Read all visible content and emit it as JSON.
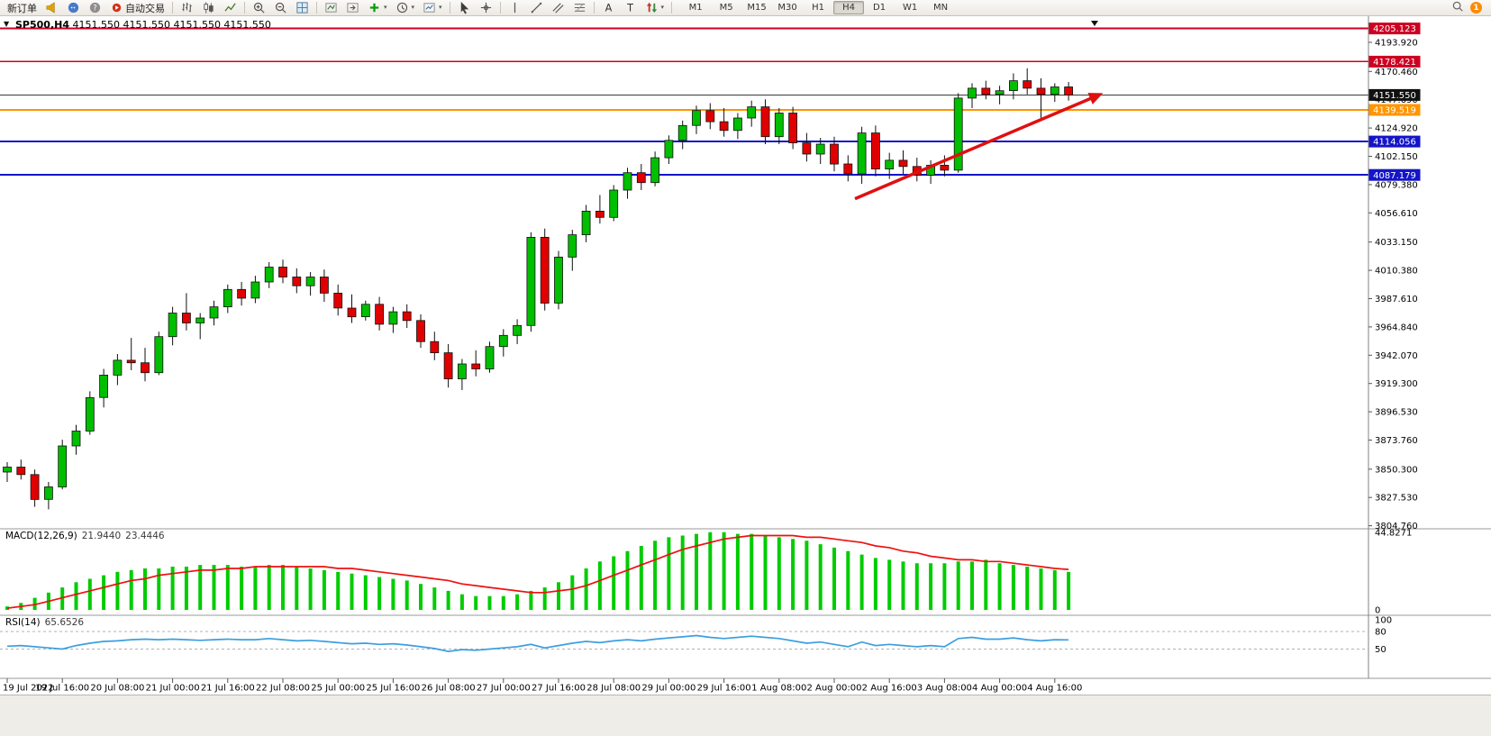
{
  "toolbar": {
    "new_order_label": "新订单",
    "autotrade_label": "自动交易",
    "timeframes": [
      "M1",
      "M5",
      "M15",
      "M30",
      "H1",
      "H4",
      "D1",
      "W1",
      "MN"
    ],
    "active_timeframe": "H4",
    "notification_count": "1"
  },
  "chart": {
    "title": "SP500,H4",
    "ohlc": "4151.550 4151.550 4151.550 4151.550",
    "current_price": "4151.550",
    "price_axis_labels": [
      "4193.920",
      "4170.460",
      "4147.690",
      "4124.920",
      "4102.150",
      "4079.380",
      "4056.610",
      "4033.150",
      "4010.380",
      "3987.610",
      "3964.840",
      "3942.070",
      "3919.300",
      "3896.530",
      "3873.760",
      "3850.300",
      "3827.530",
      "3804.760"
    ],
    "time_axis_labels": [
      "19 Jul 2022",
      "19 Jul 16:00",
      "20 Jul 08:00",
      "21 Jul 00:00",
      "21 Jul 16:00",
      "22 Jul 08:00",
      "25 Jul 00:00",
      "25 Jul 16:00",
      "26 Jul 08:00",
      "27 Jul 00:00",
      "27 Jul 16:00",
      "28 Jul 08:00",
      "29 Jul 00:00",
      "29 Jul 16:00",
      "1 Aug 08:00",
      "2 Aug 00:00",
      "2 Aug 16:00",
      "3 Aug 08:00",
      "4 Aug 00:00",
      "4 Aug 16:00"
    ],
    "level_badges": [
      {
        "label": "4205.123",
        "price": 4205.123,
        "color": "#cc0022"
      },
      {
        "label": "4178.421",
        "price": 4178.421,
        "color": "#cc0022"
      },
      {
        "label": "4151.550",
        "price": 4151.55,
        "color": "#101010"
      },
      {
        "label": "4139.519",
        "price": 4139.519,
        "color": "#ff9500"
      },
      {
        "label": "4114.056",
        "price": 4114.056,
        "color": "#1414c8"
      },
      {
        "label": "4087.179",
        "price": 4087.179,
        "color": "#1414c8"
      }
    ]
  },
  "chart_data": {
    "type": "candlestick",
    "symbol": "SP500",
    "timeframe": "H4",
    "bull_color": "#00be00",
    "bear_color": "#e00000",
    "candles_ohlc": [
      [
        3848,
        3856,
        3840,
        3852
      ],
      [
        3852,
        3858,
        3842,
        3846
      ],
      [
        3846,
        3850,
        3820,
        3826
      ],
      [
        3826,
        3840,
        3818,
        3836
      ],
      [
        3836,
        3874,
        3834,
        3869
      ],
      [
        3869,
        3886,
        3862,
        3881
      ],
      [
        3881,
        3913,
        3878,
        3908
      ],
      [
        3908,
        3931,
        3900,
        3926
      ],
      [
        3926,
        3943,
        3918,
        3938
      ],
      [
        3938,
        3956,
        3930,
        3936
      ],
      [
        3936,
        3948,
        3921,
        3928
      ],
      [
        3928,
        3961,
        3926,
        3957
      ],
      [
        3957,
        3981,
        3950,
        3976
      ],
      [
        3976,
        3992,
        3962,
        3968
      ],
      [
        3968,
        3976,
        3955,
        3972
      ],
      [
        3972,
        3986,
        3966,
        3981
      ],
      [
        3981,
        3999,
        3976,
        3995
      ],
      [
        3995,
        4001,
        3982,
        3988
      ],
      [
        3988,
        4006,
        3984,
        4001
      ],
      [
        4001,
        4017,
        3996,
        4013
      ],
      [
        4013,
        4019,
        4000,
        4005
      ],
      [
        4005,
        4012,
        3992,
        3998
      ],
      [
        3998,
        4009,
        3990,
        4005
      ],
      [
        4005,
        4011,
        3985,
        3992
      ],
      [
        3992,
        3999,
        3974,
        3980
      ],
      [
        3980,
        3991,
        3968,
        3973
      ],
      [
        3973,
        3986,
        3970,
        3983
      ],
      [
        3983,
        3989,
        3962,
        3967
      ],
      [
        3967,
        3981,
        3960,
        3977
      ],
      [
        3977,
        3983,
        3964,
        3970
      ],
      [
        3970,
        3975,
        3948,
        3953
      ],
      [
        3953,
        3961,
        3938,
        3944
      ],
      [
        3944,
        3951,
        3916,
        3923
      ],
      [
        3923,
        3939,
        3914,
        3935
      ],
      [
        3935,
        3946,
        3925,
        3931
      ],
      [
        3931,
        3953,
        3928,
        3949
      ],
      [
        3949,
        3963,
        3941,
        3958
      ],
      [
        3958,
        3971,
        3951,
        3966
      ],
      [
        3966,
        4041,
        3961,
        4037
      ],
      [
        4037,
        4044,
        3978,
        3984
      ],
      [
        3984,
        4026,
        3979,
        4021
      ],
      [
        4021,
        4043,
        4010,
        4039
      ],
      [
        4039,
        4063,
        4033,
        4058
      ],
      [
        4058,
        4071,
        4048,
        4053
      ],
      [
        4053,
        4079,
        4050,
        4075
      ],
      [
        4075,
        4093,
        4068,
        4089
      ],
      [
        4089,
        4096,
        4075,
        4081
      ],
      [
        4081,
        4106,
        4078,
        4101
      ],
      [
        4101,
        4119,
        4096,
        4115
      ],
      [
        4115,
        4131,
        4108,
        4127
      ],
      [
        4127,
        4143,
        4120,
        4139
      ],
      [
        4139,
        4145,
        4124,
        4130
      ],
      [
        4130,
        4141,
        4118,
        4123
      ],
      [
        4123,
        4137,
        4116,
        4133
      ],
      [
        4133,
        4147,
        4126,
        4142
      ],
      [
        4142,
        4148,
        4112,
        4118
      ],
      [
        4118,
        4141,
        4112,
        4137
      ],
      [
        4137,
        4142,
        4108,
        4113
      ],
      [
        4113,
        4121,
        4098,
        4104
      ],
      [
        4104,
        4117,
        4096,
        4112
      ],
      [
        4112,
        4118,
        4090,
        4096
      ],
      [
        4096,
        4103,
        4082,
        4088
      ],
      [
        4088,
        4126,
        4080,
        4121
      ],
      [
        4121,
        4127,
        4086,
        4092
      ],
      [
        4092,
        4105,
        4084,
        4099
      ],
      [
        4099,
        4107,
        4088,
        4094
      ],
      [
        4094,
        4101,
        4082,
        4087
      ],
      [
        4087,
        4099,
        4080,
        4095
      ],
      [
        4095,
        4103,
        4086,
        4091
      ],
      [
        4091,
        4153,
        4089,
        4149
      ],
      [
        4149,
        4161,
        4141,
        4157
      ],
      [
        4157,
        4163,
        4148,
        4152
      ],
      [
        4152,
        4159,
        4144,
        4155
      ],
      [
        4155,
        4169,
        4148,
        4163
      ],
      [
        4163,
        4173,
        4152,
        4157
      ],
      [
        4157,
        4165,
        4131,
        4152
      ],
      [
        4152,
        4161,
        4146,
        4158
      ],
      [
        4158,
        4162,
        4147,
        4151.55
      ]
    ],
    "horizontal_lines": [
      {
        "price": 4205.123,
        "color": "#cc0022",
        "width": 2
      },
      {
        "price": 4178.421,
        "color": "#cc0022",
        "width": 1.5
      },
      {
        "price": 4151.55,
        "color": "#3c3c3c",
        "width": 1
      },
      {
        "price": 4139.519,
        "color": "#ff9500",
        "width": 2
      },
      {
        "price": 4114.056,
        "color": "#1414c8",
        "width": 2
      },
      {
        "price": 4087.179,
        "color": "#1414c8",
        "width": 2
      }
    ],
    "trend_arrow": {
      "from_bar": 61.5,
      "from_price": 4068,
      "to_bar": 79.5,
      "to_price": 4153,
      "color": "#e01010"
    },
    "macd": {
      "name": "MACD(12,26,9)",
      "value_main": "21.9440",
      "value_signal": "23.4446",
      "scale_top_label": "44.8271",
      "scale_top_value": 44.8271,
      "scale_bottom_label": "0",
      "histogram_color": "#00cc00",
      "signal_color": "#ee1111",
      "histogram": [
        2,
        4,
        7,
        10,
        13,
        16,
        18,
        20,
        22,
        23,
        24,
        24,
        25,
        25,
        26,
        26,
        26,
        25,
        25,
        26,
        26,
        25,
        24,
        23,
        22,
        21,
        20,
        19,
        18,
        17,
        15,
        13,
        11,
        9,
        8,
        8,
        8,
        9,
        11,
        13,
        16,
        20,
        24,
        28,
        31,
        34,
        37,
        40,
        42,
        43,
        44,
        45,
        45,
        44,
        44,
        43,
        42,
        41,
        40,
        38,
        36,
        34,
        32,
        30,
        29,
        28,
        27,
        27,
        27,
        28,
        28,
        29,
        27,
        26,
        25,
        24,
        23,
        22
      ],
      "signal": [
        1,
        2,
        3,
        5,
        7,
        9,
        11,
        13,
        15,
        17,
        18,
        20,
        21,
        22,
        23,
        23,
        24,
        24,
        25,
        25,
        25,
        25,
        25,
        25,
        24,
        24,
        23,
        22,
        21,
        20,
        19,
        18,
        17,
        15,
        14,
        13,
        12,
        11,
        10,
        10,
        11,
        12,
        14,
        17,
        20,
        23,
        26,
        29,
        32,
        35,
        37,
        39,
        41,
        42,
        43,
        43,
        43,
        43,
        42,
        42,
        41,
        40,
        39,
        37,
        36,
        34,
        33,
        31,
        30,
        29,
        29,
        28,
        28,
        27,
        26,
        25,
        24,
        23.4
      ]
    },
    "rsi": {
      "name": "RSI(14)",
      "value": "65.6526",
      "line_color": "#3b9fe0",
      "levels": [
        {
          "label": "100",
          "value": 100
        },
        {
          "label": "80",
          "value": 80
        },
        {
          "label": "50",
          "value": 50
        }
      ],
      "values": [
        55,
        56,
        54,
        52,
        50,
        56,
        60,
        63,
        64,
        66,
        67,
        66,
        67,
        66,
        65,
        66,
        67,
        66,
        66,
        68,
        66,
        64,
        65,
        63,
        61,
        59,
        60,
        58,
        59,
        57,
        54,
        51,
        46,
        49,
        48,
        50,
        52,
        54,
        58,
        52,
        56,
        60,
        63,
        61,
        64,
        66,
        64,
        67,
        69,
        71,
        73,
        70,
        68,
        70,
        72,
        70,
        68,
        64,
        60,
        62,
        58,
        54,
        62,
        56,
        58,
        56,
        54,
        56,
        54,
        68,
        70,
        67,
        67,
        69,
        66,
        64,
        66,
        65.65
      ]
    }
  }
}
